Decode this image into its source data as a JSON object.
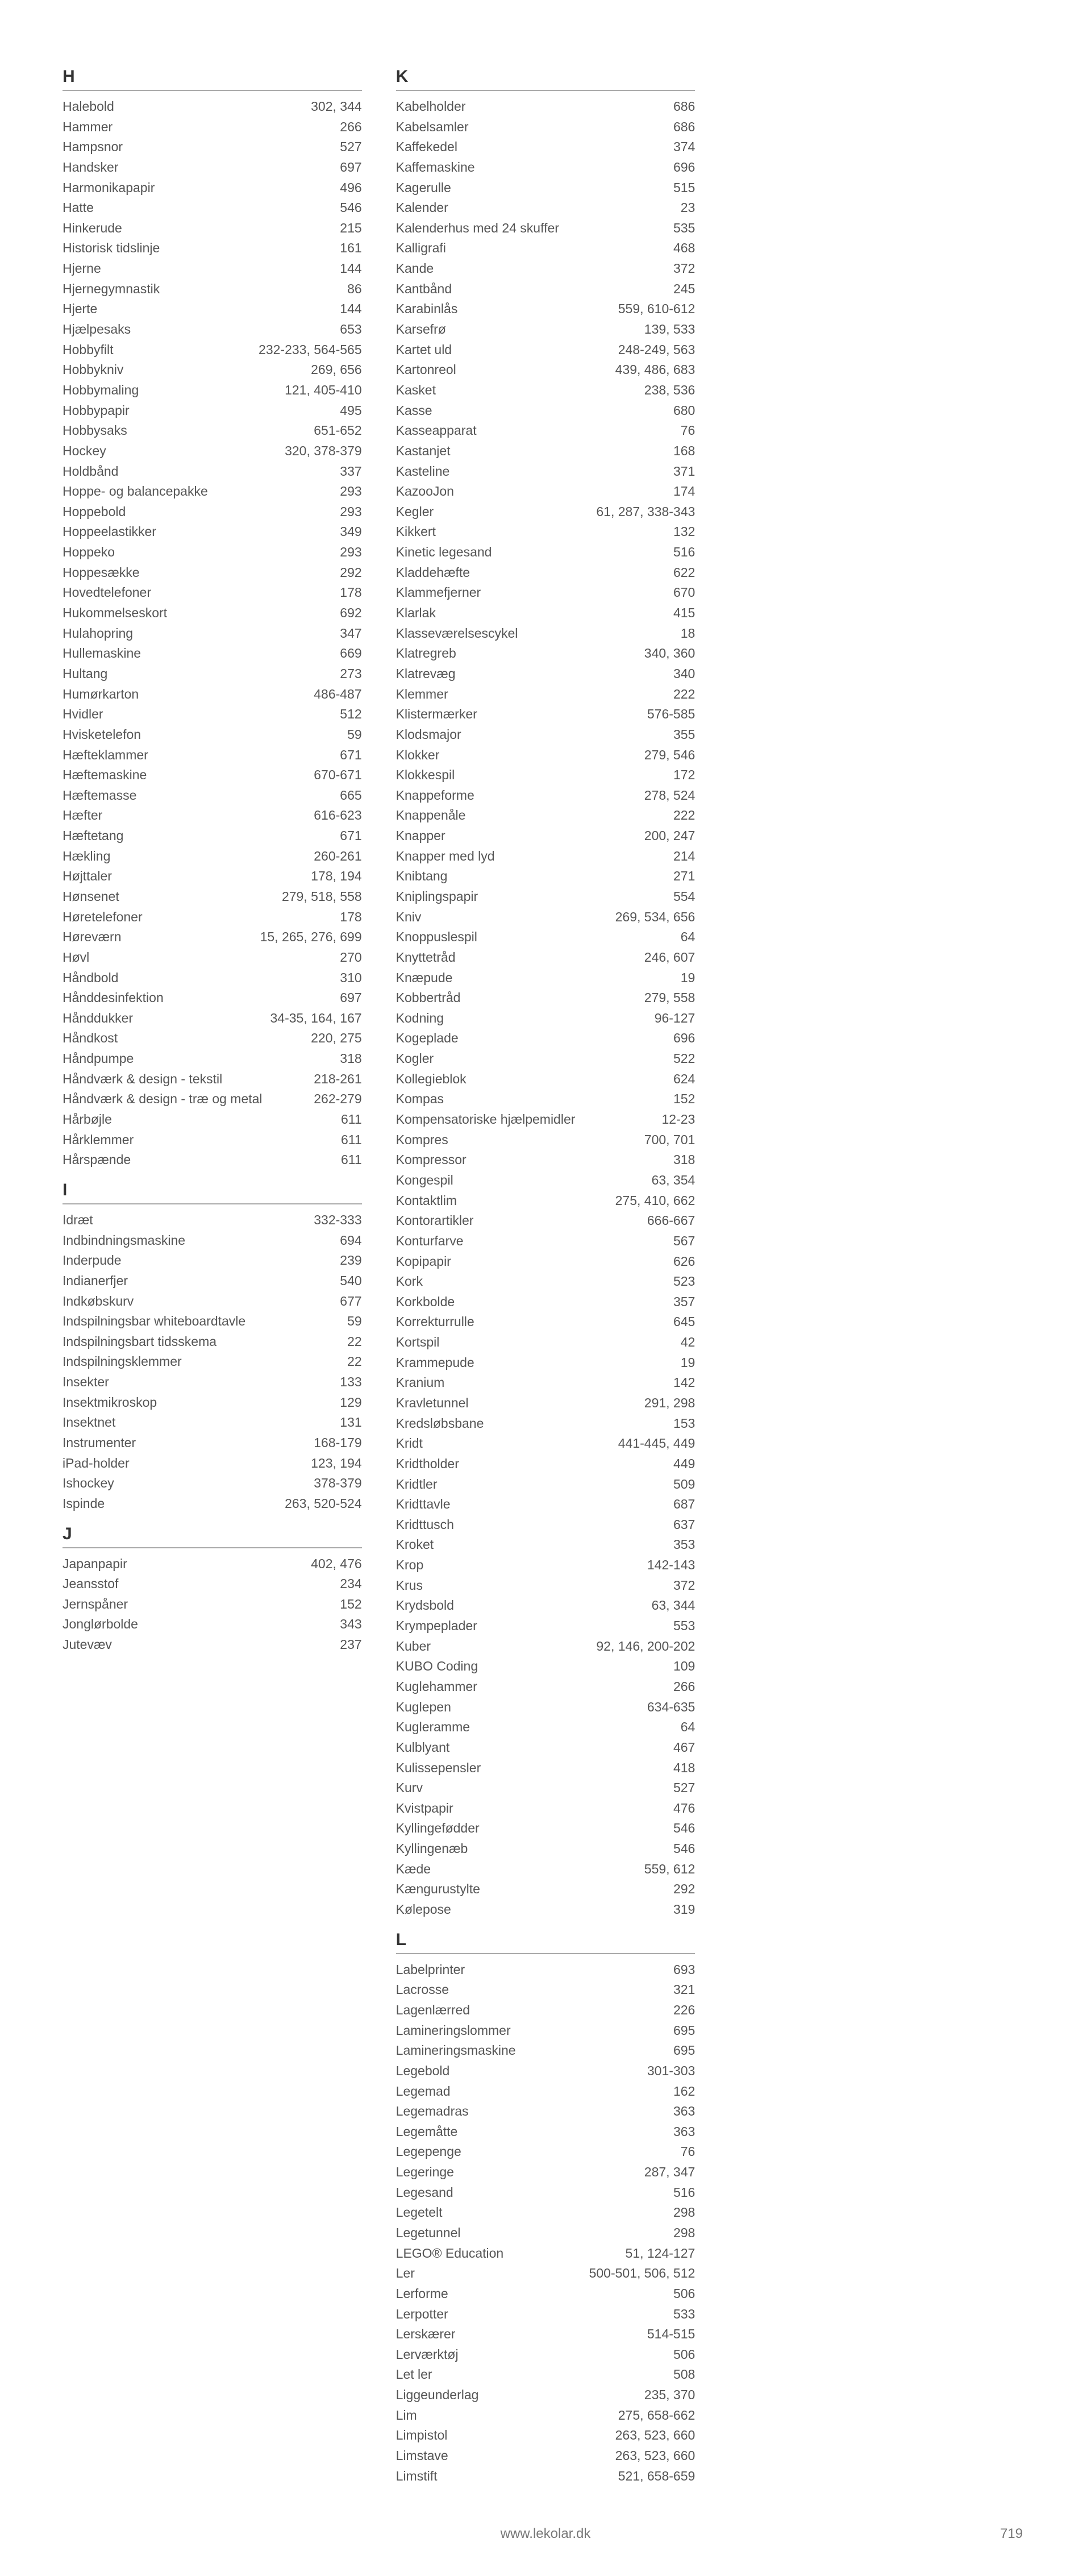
{
  "footer": {
    "url": "www.lekolar.dk",
    "page": "719"
  },
  "sections": [
    {
      "letter": "H",
      "entries": [
        {
          "t": "Halebold",
          "p": "302, 344"
        },
        {
          "t": "Hammer",
          "p": "266"
        },
        {
          "t": "Hampsnor",
          "p": "527"
        },
        {
          "t": "Handsker",
          "p": "697"
        },
        {
          "t": "Harmonikapapir",
          "p": "496"
        },
        {
          "t": "Hatte",
          "p": "546"
        },
        {
          "t": "Hinkerude",
          "p": "215"
        },
        {
          "t": "Historisk tidslinje",
          "p": "161"
        },
        {
          "t": "Hjerne",
          "p": "144"
        },
        {
          "t": "Hjernegymnastik",
          "p": "86"
        },
        {
          "t": "Hjerte",
          "p": "144"
        },
        {
          "t": "Hjælpesaks",
          "p": "653"
        },
        {
          "t": "Hobbyfilt",
          "p": "232-233, 564-565"
        },
        {
          "t": "Hobbykniv",
          "p": "269, 656"
        },
        {
          "t": "Hobbymaling",
          "p": "121, 405-410"
        },
        {
          "t": "Hobbypapir",
          "p": "495"
        },
        {
          "t": "Hobbysaks",
          "p": "651-652"
        },
        {
          "t": "Hockey",
          "p": "320, 378-379"
        },
        {
          "t": "Holdbånd",
          "p": "337"
        },
        {
          "t": "Hoppe- og balancepakke",
          "p": "293"
        },
        {
          "t": "Hoppebold",
          "p": "293"
        },
        {
          "t": "Hoppeelastikker",
          "p": "349"
        },
        {
          "t": "Hoppeko",
          "p": "293"
        },
        {
          "t": "Hoppesække",
          "p": "292"
        },
        {
          "t": "Hovedtelefoner",
          "p": "178"
        },
        {
          "t": "Hukommelseskort",
          "p": "692"
        },
        {
          "t": "Hulahopring",
          "p": "347"
        },
        {
          "t": "Hullemaskine",
          "p": "669"
        },
        {
          "t": "Hultang",
          "p": "273"
        },
        {
          "t": "Humørkarton",
          "p": "486-487"
        },
        {
          "t": "Hvidler",
          "p": "512"
        },
        {
          "t": "Hvisketelefon",
          "p": "59"
        },
        {
          "t": "Hæfteklammer",
          "p": "671"
        },
        {
          "t": "Hæftemaskine",
          "p": "670-671"
        },
        {
          "t": "Hæftemasse",
          "p": "665"
        },
        {
          "t": "Hæfter",
          "p": "616-623"
        },
        {
          "t": "Hæftetang",
          "p": "671"
        },
        {
          "t": "Hækling",
          "p": "260-261"
        },
        {
          "t": "Højttaler",
          "p": "178, 194"
        },
        {
          "t": "Hønsenet",
          "p": "279, 518, 558"
        },
        {
          "t": "Høretelefoner",
          "p": "178"
        },
        {
          "t": "Høreværn",
          "p": "15, 265, 276, 699"
        },
        {
          "t": "Høvl",
          "p": "270"
        },
        {
          "t": "Håndbold",
          "p": "310"
        },
        {
          "t": "Hånddesinfektion",
          "p": "697"
        },
        {
          "t": "Hånddukker",
          "p": "34-35, 164, 167"
        },
        {
          "t": "Håndkost",
          "p": "220, 275"
        },
        {
          "t": "Håndpumpe",
          "p": "318"
        },
        {
          "t": "Håndværk & design - tekstil",
          "p": "218-261"
        },
        {
          "t": "Håndværk & design - træ og metal",
          "p": "262-279"
        },
        {
          "t": "Hårbøjle",
          "p": "611"
        },
        {
          "t": "Hårklemmer",
          "p": "611"
        },
        {
          "t": "Hårspænde",
          "p": "611"
        }
      ]
    },
    {
      "letter": "I",
      "entries": [
        {
          "t": "Idræt",
          "p": "332-333"
        },
        {
          "t": "Indbindningsmaskine",
          "p": "694"
        },
        {
          "t": "Inderpude",
          "p": "239"
        },
        {
          "t": "Indianerfjer",
          "p": "540"
        },
        {
          "t": "Indkøbskurv",
          "p": "677"
        },
        {
          "t": "Indspilningsbar whiteboardtavle",
          "p": "59"
        },
        {
          "t": "Indspilningsbart tidsskema",
          "p": "22"
        },
        {
          "t": "Indspilningsklemmer",
          "p": "22"
        },
        {
          "t": "Insekter",
          "p": "133"
        },
        {
          "t": "Insektmikroskop",
          "p": "129"
        },
        {
          "t": "Insektnet",
          "p": "131"
        },
        {
          "t": "Instrumenter",
          "p": "168-179"
        },
        {
          "t": "iPad-holder",
          "p": "123, 194"
        },
        {
          "t": "Ishockey",
          "p": "378-379"
        },
        {
          "t": "Ispinde",
          "p": "263, 520-524"
        }
      ]
    },
    {
      "letter": "J",
      "entries": [
        {
          "t": "Japanpapir",
          "p": "402, 476"
        },
        {
          "t": "Jeansstof",
          "p": "234"
        },
        {
          "t": "Jernspåner",
          "p": "152"
        },
        {
          "t": "Jonglørbolde",
          "p": "343"
        },
        {
          "t": "Jutevæv",
          "p": "237"
        }
      ]
    },
    {
      "letter": "K",
      "entries": [
        {
          "t": "Kabelholder",
          "p": "686"
        },
        {
          "t": "Kabelsamler",
          "p": "686"
        },
        {
          "t": "Kaffekedel",
          "p": "374"
        },
        {
          "t": "Kaffemaskine",
          "p": "696"
        },
        {
          "t": "Kagerulle",
          "p": "515"
        },
        {
          "t": "Kalender",
          "p": "23"
        },
        {
          "t": "Kalenderhus med 24 skuffer",
          "p": "535"
        },
        {
          "t": "Kalligrafi",
          "p": "468"
        },
        {
          "t": "Kande",
          "p": "372"
        },
        {
          "t": "Kantbånd",
          "p": "245"
        },
        {
          "t": "Karabinlås",
          "p": "559, 610-612"
        },
        {
          "t": "Karsefrø",
          "p": "139, 533"
        },
        {
          "t": "Kartet uld",
          "p": "248-249, 563"
        },
        {
          "t": "Kartonreol",
          "p": "439, 486, 683"
        },
        {
          "t": "Kasket",
          "p": "238, 536"
        },
        {
          "t": "Kasse",
          "p": "680"
        },
        {
          "t": "Kasseapparat",
          "p": "76"
        },
        {
          "t": "Kastanjet",
          "p": "168"
        },
        {
          "t": "Kasteline",
          "p": "371"
        },
        {
          "t": "KazooJon",
          "p": "174"
        },
        {
          "t": "Kegler",
          "p": "61, 287, 338-343"
        },
        {
          "t": "Kikkert",
          "p": "132"
        },
        {
          "t": "Kinetic legesand",
          "p": "516"
        },
        {
          "t": "Kladdehæfte",
          "p": "622"
        },
        {
          "t": "Klammefjerner",
          "p": "670"
        },
        {
          "t": "Klarlak",
          "p": "415"
        },
        {
          "t": "Klasseværelsescykel",
          "p": "18"
        },
        {
          "t": "Klatregreb",
          "p": "340, 360"
        },
        {
          "t": "Klatrevæg",
          "p": "340"
        },
        {
          "t": "Klemmer",
          "p": "222"
        },
        {
          "t": "Klistermærker",
          "p": "576-585"
        },
        {
          "t": "Klodsmajor",
          "p": "355"
        },
        {
          "t": "Klokker",
          "p": "279, 546"
        },
        {
          "t": "Klokkespil",
          "p": "172"
        },
        {
          "t": "Knappeforme",
          "p": "278, 524"
        },
        {
          "t": "Knappenåle",
          "p": "222"
        },
        {
          "t": "Knapper",
          "p": "200, 247"
        },
        {
          "t": "Knapper med lyd",
          "p": "214"
        },
        {
          "t": "Knibtang",
          "p": "271"
        },
        {
          "t": "Kniplingspapir",
          "p": "554"
        },
        {
          "t": "Kniv",
          "p": "269, 534, 656"
        },
        {
          "t": "Knoppuslespil",
          "p": "64"
        },
        {
          "t": "Knyttetråd",
          "p": "246, 607"
        },
        {
          "t": "Knæpude",
          "p": "19"
        },
        {
          "t": "Kobbertråd",
          "p": "279, 558"
        },
        {
          "t": "Kodning",
          "p": "96-127"
        },
        {
          "t": "Kogeplade",
          "p": "696"
        },
        {
          "t": "Kogler",
          "p": "522"
        },
        {
          "t": "Kollegieblok",
          "p": "624"
        },
        {
          "t": "Kompas",
          "p": "152"
        },
        {
          "t": "Kompensatoriske hjælpemidler",
          "p": "12-23"
        },
        {
          "t": "Kompres",
          "p": "700, 701"
        },
        {
          "t": "Kompressor",
          "p": "318"
        },
        {
          "t": "Kongespil",
          "p": "63, 354"
        },
        {
          "t": "Kontaktlim",
          "p": "275, 410, 662"
        },
        {
          "t": "Kontorartikler",
          "p": "666-667"
        },
        {
          "t": "Konturfarve",
          "p": "567"
        },
        {
          "t": "Kopipapir",
          "p": "626"
        },
        {
          "t": "Kork",
          "p": "523"
        },
        {
          "t": "Korkbolde",
          "p": "357"
        },
        {
          "t": "Korrekturrulle",
          "p": "645"
        },
        {
          "t": "Kortspil",
          "p": "42"
        },
        {
          "t": "Krammepude",
          "p": "19"
        },
        {
          "t": "Kranium",
          "p": "142"
        },
        {
          "t": "Kravletunnel",
          "p": "291, 298"
        },
        {
          "t": "Kredsløbsbane",
          "p": "153"
        },
        {
          "t": "Kridt",
          "p": "441-445, 449"
        },
        {
          "t": "Kridtholder",
          "p": "449"
        },
        {
          "t": "Kridtler",
          "p": "509"
        },
        {
          "t": "Kridttavle",
          "p": "687"
        },
        {
          "t": "Kridttusch",
          "p": "637"
        },
        {
          "t": "Kroket",
          "p": "353"
        },
        {
          "t": "Krop",
          "p": "142-143"
        },
        {
          "t": "Krus",
          "p": "372"
        },
        {
          "t": "Krydsbold",
          "p": "63, 344"
        },
        {
          "t": "Krympeplader",
          "p": "553"
        },
        {
          "t": "Kuber",
          "p": "92, 146, 200-202"
        },
        {
          "t": "KUBO Coding",
          "p": "109"
        },
        {
          "t": "Kuglehammer",
          "p": "266"
        },
        {
          "t": "Kuglepen",
          "p": "634-635"
        },
        {
          "t": "Kugleramme",
          "p": "64"
        },
        {
          "t": "Kulblyant",
          "p": "467"
        },
        {
          "t": "Kulissepensler",
          "p": "418"
        },
        {
          "t": "Kurv",
          "p": "527"
        },
        {
          "t": "Kvistpapir",
          "p": "476"
        },
        {
          "t": "Kyllingefødder",
          "p": "546"
        },
        {
          "t": "Kyllingenæb",
          "p": "546"
        },
        {
          "t": "Kæde",
          "p": "559, 612"
        },
        {
          "t": "Kængurustylte",
          "p": "292"
        },
        {
          "t": "Kølepose",
          "p": "319"
        }
      ]
    },
    {
      "letter": "L",
      "entries": [
        {
          "t": "Labelprinter",
          "p": "693"
        },
        {
          "t": "Lacrosse",
          "p": "321"
        },
        {
          "t": "Lagenlærred",
          "p": "226"
        },
        {
          "t": "Lamineringslommer",
          "p": "695"
        },
        {
          "t": "Lamineringsmaskine",
          "p": "695"
        },
        {
          "t": "Legebold",
          "p": "301-303"
        },
        {
          "t": "Legemad",
          "p": "162"
        },
        {
          "t": "Legemadras",
          "p": "363"
        },
        {
          "t": "Legemåtte",
          "p": "363"
        },
        {
          "t": "Legepenge",
          "p": "76"
        },
        {
          "t": "Legeringe",
          "p": "287, 347"
        },
        {
          "t": "Legesand",
          "p": "516"
        },
        {
          "t": "Legetelt",
          "p": "298"
        },
        {
          "t": "Legetunnel",
          "p": "298"
        },
        {
          "t": "LEGO® Education",
          "p": "51, 124-127"
        },
        {
          "t": "Ler",
          "p": "500-501, 506, 512"
        },
        {
          "t": "Lerforme",
          "p": "506"
        },
        {
          "t": "Lerpotter",
          "p": "533"
        },
        {
          "t": "Lerskærer",
          "p": "514-515"
        },
        {
          "t": "Lerværktøj",
          "p": "506"
        },
        {
          "t": "Let ler",
          "p": "508"
        },
        {
          "t": "Liggeunderlag",
          "p": "235, 370"
        },
        {
          "t": "Lim",
          "p": "275, 658-662"
        },
        {
          "t": "Limpistol",
          "p": "263, 523, 660"
        },
        {
          "t": "Limstave",
          "p": "263, 523, 660"
        },
        {
          "t": "Limstift",
          "p": "521, 658-659"
        }
      ]
    }
  ]
}
